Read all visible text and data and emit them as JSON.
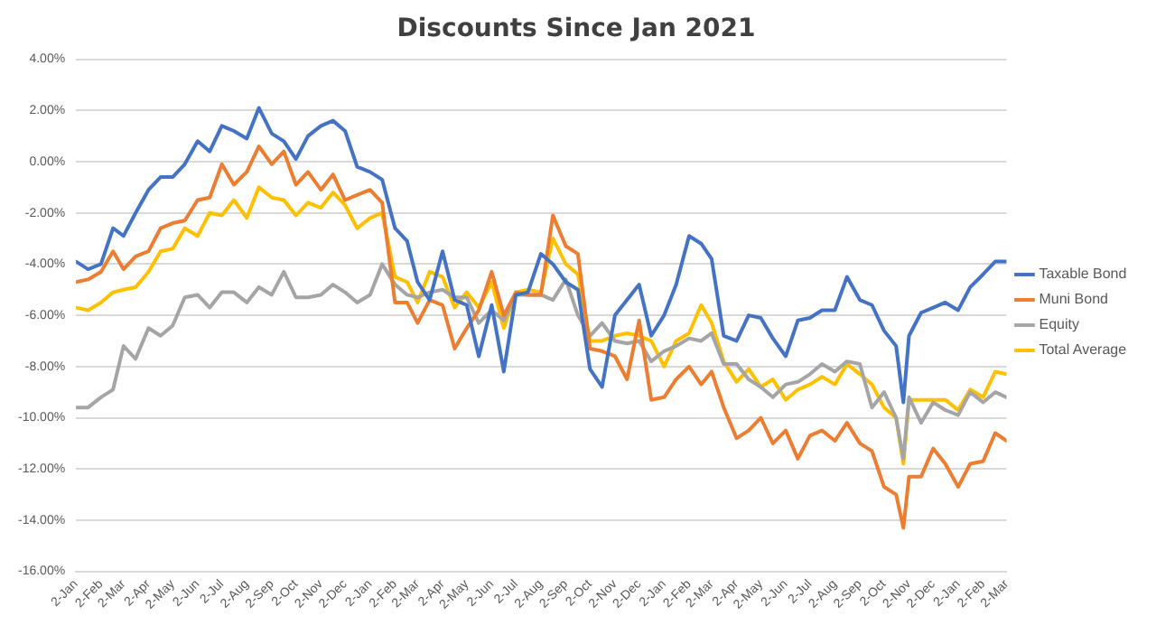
{
  "chart_data": {
    "type": "line",
    "title": "Discounts Since Jan 2021",
    "x": [
      "2021-01-02",
      "2021-01-17",
      "2021-02-02",
      "2021-02-17",
      "2021-03-02",
      "2021-03-17",
      "2021-04-02",
      "2021-04-17",
      "2021-05-02",
      "2021-05-17",
      "2021-06-02",
      "2021-06-17",
      "2021-07-02",
      "2021-07-17",
      "2021-08-02",
      "2021-08-17",
      "2021-09-02",
      "2021-09-17",
      "2021-10-02",
      "2021-10-17",
      "2021-11-02",
      "2021-11-17",
      "2021-12-02",
      "2021-12-17",
      "2022-01-02",
      "2022-01-17",
      "2022-02-02",
      "2022-02-17",
      "2022-03-02",
      "2022-03-17",
      "2022-04-02",
      "2022-04-17",
      "2022-05-02",
      "2022-05-17",
      "2022-06-02",
      "2022-06-17",
      "2022-07-02",
      "2022-07-17",
      "2022-08-02",
      "2022-08-17",
      "2022-09-02",
      "2022-09-17",
      "2022-10-02",
      "2022-10-17",
      "2022-11-02",
      "2022-11-17",
      "2022-12-02",
      "2022-12-17",
      "2023-01-02",
      "2023-01-17",
      "2023-02-02",
      "2023-02-17",
      "2023-03-02",
      "2023-03-17",
      "2023-04-02",
      "2023-04-17",
      "2023-05-02",
      "2023-05-17",
      "2023-06-02",
      "2023-06-17",
      "2023-07-02",
      "2023-07-17",
      "2023-08-02",
      "2023-08-17",
      "2023-09-02",
      "2023-09-17",
      "2023-10-02",
      "2023-10-17",
      "2023-10-26",
      "2023-11-02",
      "2023-11-17",
      "2023-12-02",
      "2023-12-17",
      "2024-01-02",
      "2024-01-17",
      "2024-02-02",
      "2024-02-17",
      "2024-03-02"
    ],
    "series": [
      {
        "name": "Taxable Bond",
        "color": "#4472c4",
        "values": [
          -3.9,
          -4.2,
          -4.0,
          -2.6,
          -2.9,
          -2.0,
          -1.1,
          -0.6,
          -0.6,
          -0.1,
          0.8,
          0.4,
          1.4,
          1.2,
          0.9,
          2.1,
          1.1,
          0.8,
          0.1,
          1.0,
          1.4,
          1.6,
          1.2,
          -0.2,
          -0.4,
          -0.7,
          -2.6,
          -3.1,
          -4.7,
          -5.4,
          -3.5,
          -5.4,
          -5.6,
          -7.6,
          -5.6,
          -8.2,
          -5.2,
          -5.1,
          -3.6,
          -4.0,
          -4.7,
          -5.0,
          -8.1,
          -8.8,
          -6.0,
          -5.4,
          -4.8,
          -6.8,
          -6.0,
          -4.8,
          -2.9,
          -3.2,
          -3.8,
          -6.8,
          -7.0,
          -6.0,
          -6.1,
          -6.9,
          -7.6,
          -6.2,
          -6.1,
          -5.8,
          -5.8,
          -4.5,
          -5.4,
          -5.6,
          -6.6,
          -7.2,
          -9.4,
          -6.8,
          -5.9,
          -5.7,
          -5.5,
          -5.8,
          -4.9,
          -4.4,
          -3.9,
          -3.9
        ]
      },
      {
        "name": "Muni Bond",
        "color": "#ed7d31",
        "values": [
          -4.7,
          -4.6,
          -4.3,
          -3.5,
          -4.2,
          -3.7,
          -3.5,
          -2.6,
          -2.4,
          -2.3,
          -1.5,
          -1.4,
          -0.1,
          -0.9,
          -0.4,
          0.6,
          -0.1,
          0.4,
          -0.9,
          -0.4,
          -1.1,
          -0.5,
          -1.5,
          -1.3,
          -1.1,
          -1.6,
          -5.5,
          -5.5,
          -6.3,
          -5.4,
          -5.6,
          -7.3,
          -6.5,
          -5.8,
          -4.3,
          -6.0,
          -5.1,
          -5.2,
          -5.2,
          -2.1,
          -3.3,
          -3.6,
          -7.3,
          -7.4,
          -7.6,
          -8.5,
          -6.2,
          -9.3,
          -9.2,
          -8.5,
          -8.0,
          -8.7,
          -8.2,
          -9.6,
          -10.8,
          -10.5,
          -10.0,
          -11.0,
          -10.5,
          -11.6,
          -10.7,
          -10.5,
          -10.9,
          -10.2,
          -11.0,
          -11.3,
          -12.7,
          -13.0,
          -14.3,
          -12.3,
          -12.3,
          -11.2,
          -11.8,
          -12.7,
          -11.8,
          -11.7,
          -10.6,
          -10.9
        ]
      },
      {
        "name": "Equity",
        "color": "#a5a5a5",
        "values": [
          -9.6,
          -9.6,
          -9.2,
          -8.9,
          -7.2,
          -7.7,
          -6.5,
          -6.8,
          -6.4,
          -5.3,
          -5.2,
          -5.7,
          -5.1,
          -5.1,
          -5.5,
          -4.9,
          -5.2,
          -4.3,
          -5.3,
          -5.3,
          -5.2,
          -4.8,
          -5.1,
          -5.5,
          -5.2,
          -4.0,
          -4.8,
          -5.2,
          -5.3,
          -5.1,
          -5.0,
          -5.3,
          -5.3,
          -6.3,
          -5.8,
          -6.2,
          -5.2,
          -5.2,
          -5.2,
          -5.4,
          -4.6,
          -6.0,
          -6.8,
          -6.3,
          -7.0,
          -7.1,
          -7.0,
          -7.8,
          -7.4,
          -7.2,
          -6.9,
          -7.0,
          -6.7,
          -7.9,
          -7.9,
          -8.5,
          -8.8,
          -9.2,
          -8.7,
          -8.6,
          -8.3,
          -7.9,
          -8.2,
          -7.8,
          -7.9,
          -9.6,
          -9.0,
          -10.0,
          -11.6,
          -9.2,
          -10.2,
          -9.4,
          -9.7,
          -9.9,
          -9.0,
          -9.4,
          -9.0,
          -9.2
        ]
      },
      {
        "name": "Total Average",
        "color": "#ffc000",
        "values": [
          -5.7,
          -5.8,
          -5.5,
          -5.1,
          -5.0,
          -4.9,
          -4.3,
          -3.5,
          -3.4,
          -2.6,
          -2.9,
          -2.0,
          -2.1,
          -1.5,
          -2.2,
          -1.0,
          -1.4,
          -1.5,
          -2.1,
          -1.6,
          -1.8,
          -1.2,
          -1.7,
          -2.6,
          -2.2,
          -2.0,
          -4.5,
          -4.7,
          -5.5,
          -4.3,
          -4.5,
          -5.7,
          -5.1,
          -5.7,
          -4.7,
          -6.5,
          -5.1,
          -5.0,
          -5.1,
          -3.0,
          -4.0,
          -4.4,
          -7.0,
          -7.0,
          -6.8,
          -6.7,
          -6.8,
          -7.0,
          -8.0,
          -7.0,
          -6.7,
          -5.6,
          -6.3,
          -7.8,
          -8.6,
          -8.1,
          -8.8,
          -8.5,
          -9.3,
          -8.9,
          -8.7,
          -8.4,
          -8.7,
          -7.9,
          -8.3,
          -8.7,
          -9.6,
          -10.0,
          -11.8,
          -9.3,
          -9.3,
          -9.3,
          -9.3,
          -9.7,
          -8.9,
          -9.2,
          -8.2,
          -8.3
        ]
      }
    ],
    "xlim": [
      "2021-01-02",
      "2024-03-02"
    ],
    "xticks": [
      {
        "value": "2021-01-02",
        "label": "2-Jan"
      },
      {
        "value": "2021-02-02",
        "label": "2-Feb"
      },
      {
        "value": "2021-03-02",
        "label": "2-Mar"
      },
      {
        "value": "2021-04-02",
        "label": "2-Apr"
      },
      {
        "value": "2021-05-02",
        "label": "2-May"
      },
      {
        "value": "2021-06-02",
        "label": "2-Jun"
      },
      {
        "value": "2021-07-02",
        "label": "2-Jul"
      },
      {
        "value": "2021-08-02",
        "label": "2-Aug"
      },
      {
        "value": "2021-09-02",
        "label": "2-Sep"
      },
      {
        "value": "2021-10-02",
        "label": "2-Oct"
      },
      {
        "value": "2021-11-02",
        "label": "2-Nov"
      },
      {
        "value": "2021-12-02",
        "label": "2-Dec"
      },
      {
        "value": "2022-01-02",
        "label": "2-Jan"
      },
      {
        "value": "2022-02-02",
        "label": "2-Feb"
      },
      {
        "value": "2022-03-02",
        "label": "2-Mar"
      },
      {
        "value": "2022-04-02",
        "label": "2-Apr"
      },
      {
        "value": "2022-05-02",
        "label": "2-May"
      },
      {
        "value": "2022-06-02",
        "label": "2-Jun"
      },
      {
        "value": "2022-07-02",
        "label": "2-Jul"
      },
      {
        "value": "2022-08-02",
        "label": "2-Aug"
      },
      {
        "value": "2022-09-02",
        "label": "2-Sep"
      },
      {
        "value": "2022-10-02",
        "label": "2-Oct"
      },
      {
        "value": "2022-11-02",
        "label": "2-Nov"
      },
      {
        "value": "2022-12-02",
        "label": "2-Dec"
      },
      {
        "value": "2023-01-02",
        "label": "2-Jan"
      },
      {
        "value": "2023-02-02",
        "label": "2-Feb"
      },
      {
        "value": "2023-03-02",
        "label": "2-Mar"
      },
      {
        "value": "2023-04-02",
        "label": "2-Apr"
      },
      {
        "value": "2023-05-02",
        "label": "2-May"
      },
      {
        "value": "2023-06-02",
        "label": "2-Jun"
      },
      {
        "value": "2023-07-02",
        "label": "2-Jul"
      },
      {
        "value": "2023-08-02",
        "label": "2-Aug"
      },
      {
        "value": "2023-09-02",
        "label": "2-Sep"
      },
      {
        "value": "2023-10-02",
        "label": "2-Oct"
      },
      {
        "value": "2023-11-02",
        "label": "2-Nov"
      },
      {
        "value": "2023-12-02",
        "label": "2-Dec"
      },
      {
        "value": "2024-01-02",
        "label": "2-Jan"
      },
      {
        "value": "2024-02-02",
        "label": "2-Feb"
      },
      {
        "value": "2024-03-02",
        "label": "2-Mar"
      }
    ],
    "ylim": [
      -16,
      4
    ],
    "yticks": [
      {
        "value": -16,
        "label": "-16.00%"
      },
      {
        "value": -14,
        "label": "-14.00%"
      },
      {
        "value": -12,
        "label": "-12.00%"
      },
      {
        "value": -10,
        "label": "-10.00%"
      },
      {
        "value": -8,
        "label": "-8.00%"
      },
      {
        "value": -6,
        "label": "-6.00%"
      },
      {
        "value": -4,
        "label": "-4.00%"
      },
      {
        "value": -2,
        "label": "-2.00%"
      },
      {
        "value": 0,
        "label": "0.00%"
      },
      {
        "value": 2,
        "label": "2.00%"
      },
      {
        "value": 4,
        "label": "4.00%"
      }
    ],
    "grid": "y",
    "legend": "right",
    "marker": "none",
    "line_style": "solid"
  }
}
